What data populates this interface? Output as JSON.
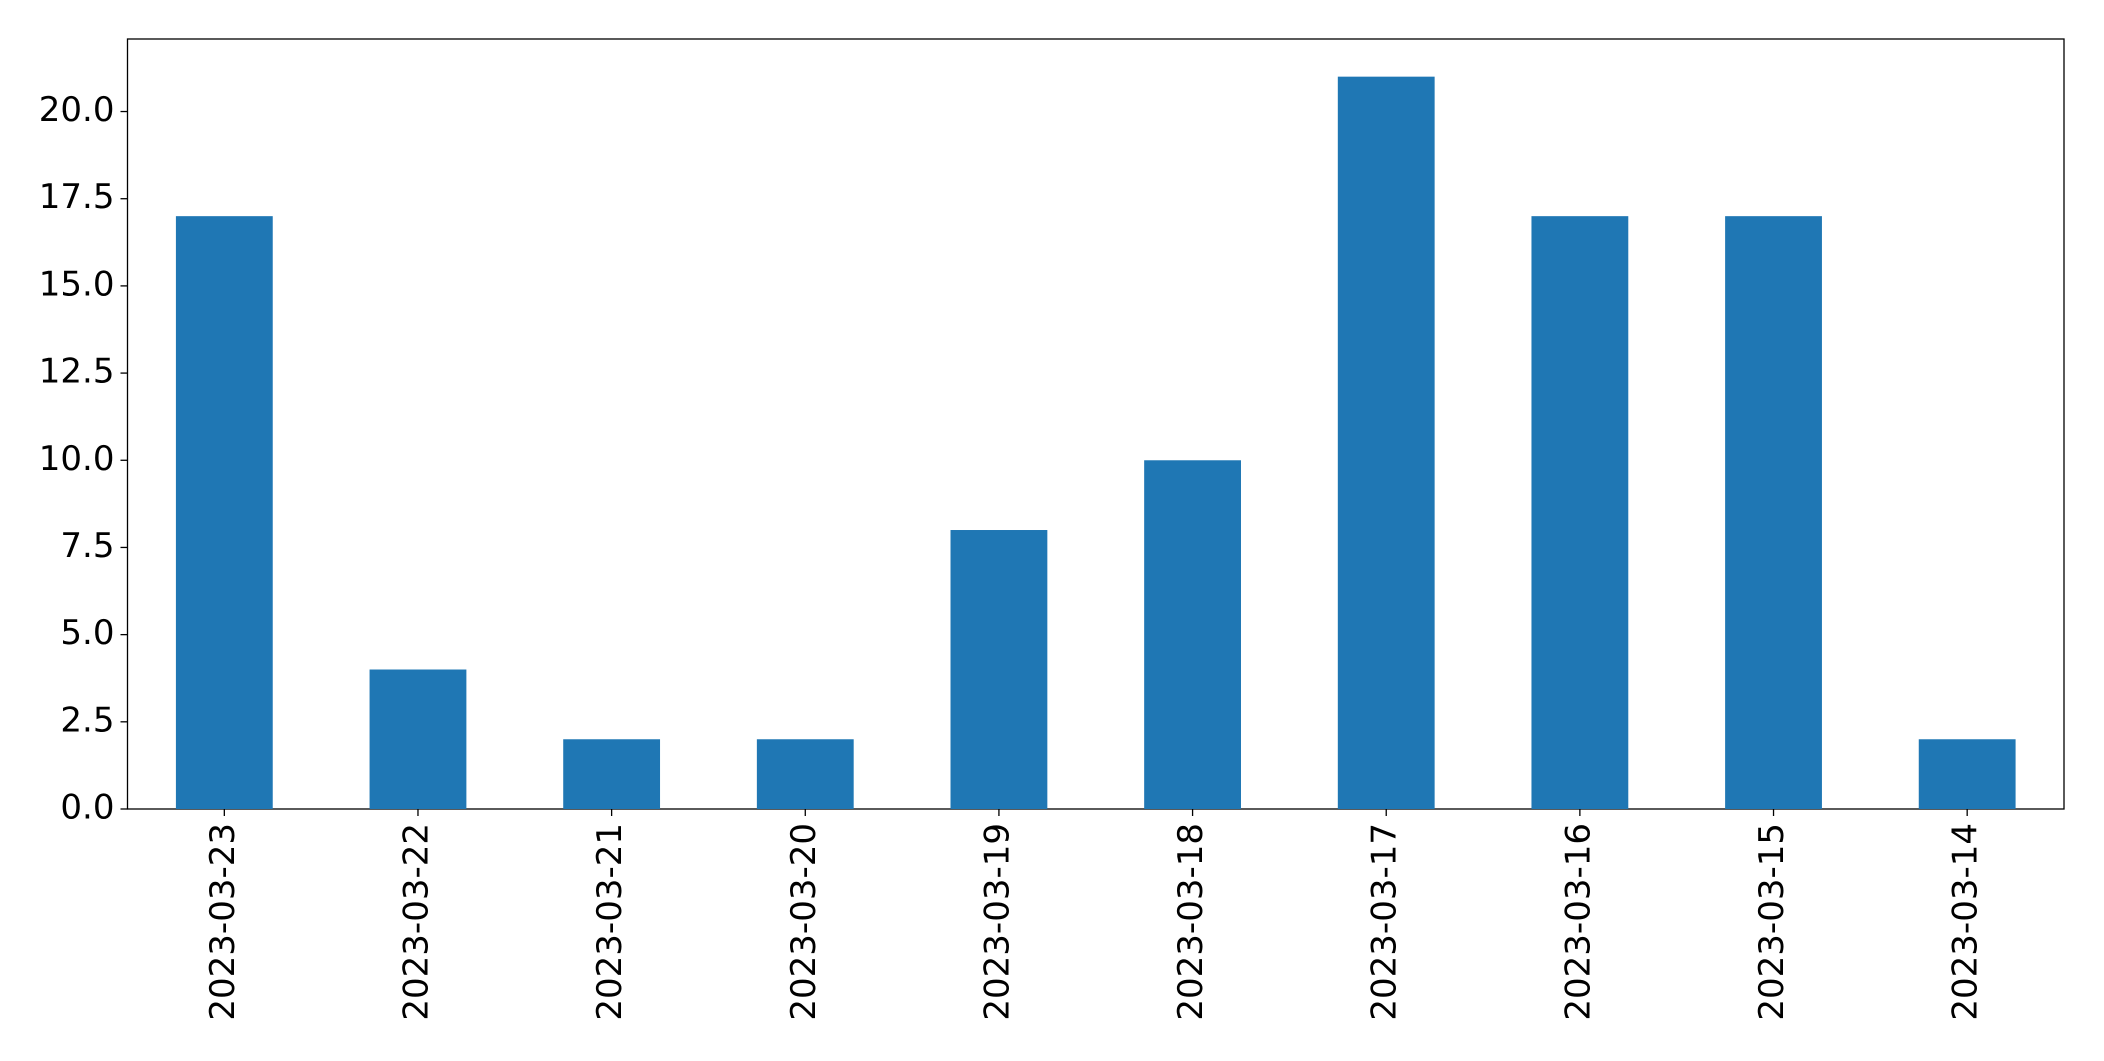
{
  "chart_data": {
    "type": "bar",
    "categories": [
      "2023-03-23",
      "2023-03-22",
      "2023-03-21",
      "2023-03-20",
      "2023-03-19",
      "2023-03-18",
      "2023-03-17",
      "2023-03-16",
      "2023-03-15",
      "2023-03-14"
    ],
    "values": [
      17,
      4,
      2,
      2,
      8,
      10,
      21,
      17,
      17,
      2
    ],
    "color": "#1f77b4",
    "ylim": [
      0,
      22.08
    ],
    "yticks": [
      {
        "value": 0,
        "label": "0.0"
      },
      2.5,
      {
        "value": 5,
        "label": "5.0"
      },
      7.5,
      {
        "value": 10,
        "label": "10.0"
      },
      12.5,
      {
        "value": 15,
        "label": "15.0"
      },
      17.5,
      {
        "value": 20,
        "label": "20.0"
      }
    ],
    "grid": false
  }
}
